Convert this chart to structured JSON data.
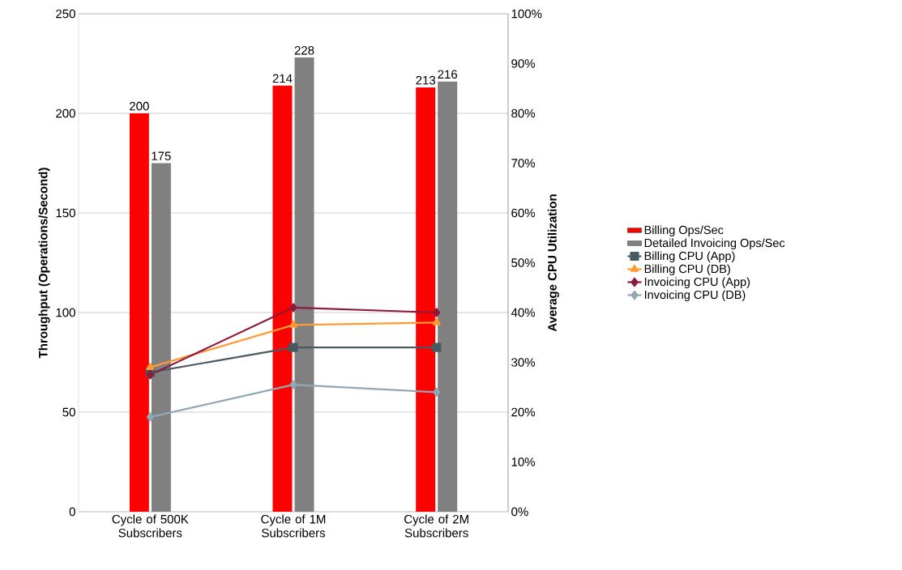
{
  "chart_data": {
    "type": "bar",
    "categories": [
      "Cycle of 500K Subscribers",
      "Cycle of 1M Subscribers",
      "Cycle of 2M Subscribers"
    ],
    "ylabel": "Throughput (Operations/Second)",
    "y2label": "Average CPU Utilization",
    "ylim": [
      0,
      250
    ],
    "yticks": [
      0,
      50,
      100,
      150,
      200,
      250
    ],
    "y2lim": [
      0,
      100
    ],
    "y2ticks": [
      {
        "value": 0,
        "label": "0%"
      },
      {
        "value": 10,
        "label": "10%"
      },
      {
        "value": 20,
        "label": "20%"
      },
      {
        "value": 30,
        "label": "30%"
      },
      {
        "value": 40,
        "label": "40%"
      },
      {
        "value": 50,
        "label": "50%"
      },
      {
        "value": 60,
        "label": "60%"
      },
      {
        "value": 70,
        "label": "70%"
      },
      {
        "value": 80,
        "label": "80%"
      },
      {
        "value": 90,
        "label": "90%"
      },
      {
        "value": 100,
        "label": "100%"
      }
    ],
    "grid": "y",
    "legend": "right",
    "series": [
      {
        "name": "Billing Ops/Sec",
        "color": "#ff0000",
        "values": [
          200,
          214,
          213
        ],
        "value_labels": [
          "200",
          "214",
          "213"
        ]
      },
      {
        "name": "Detailed Invoicing Ops/Sec",
        "color": "#808080",
        "values": [
          175,
          228,
          216
        ],
        "value_labels": [
          "175",
          "228",
          "216"
        ]
      },
      {
        "name": "Billing CPU (App)",
        "type": "line",
        "axis": "y2",
        "marker": "square",
        "color": "#475a62",
        "values": [
          28,
          33,
          33
        ]
      },
      {
        "name": "Billing CPU (DB)",
        "type": "line",
        "axis": "y2",
        "marker": "triangle",
        "color": "#ff9933",
        "values": [
          29,
          37.5,
          38
        ]
      },
      {
        "name": "Invoicing CPU (App)",
        "type": "line",
        "axis": "y2",
        "marker": "diamond",
        "color": "#8b1a3e",
        "values": [
          27.5,
          41,
          40
        ]
      },
      {
        "name": "Invoicing CPU (DB)",
        "type": "line",
        "axis": "y2",
        "marker": "diamond",
        "color": "#8fa8b5",
        "values": [
          19,
          25.5,
          24
        ]
      }
    ]
  }
}
